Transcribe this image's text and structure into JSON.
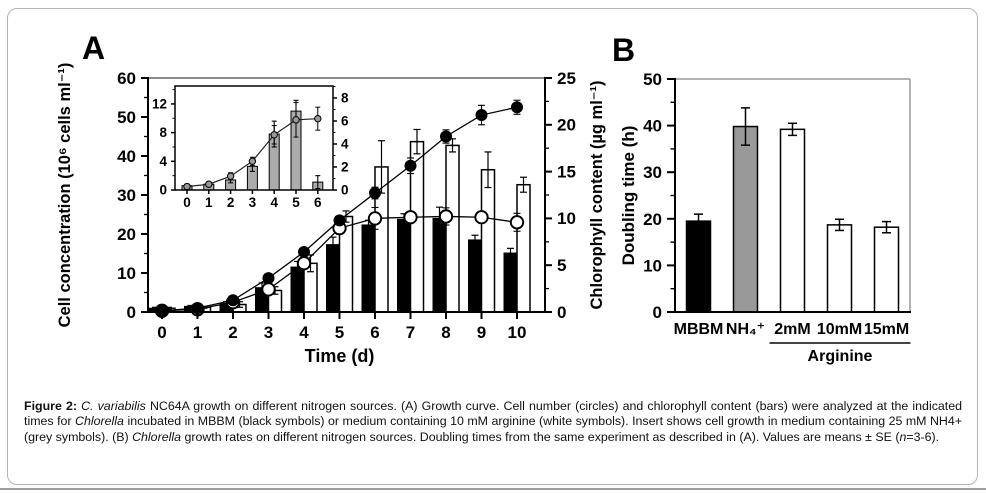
{
  "figure": {
    "panel_a_letter": "A",
    "panel_b_letter": "B"
  },
  "chart_data": [
    {
      "id": "A",
      "type": "line+bar",
      "title": "",
      "xlabel": "Time (d)",
      "x": [
        0,
        1,
        2,
        3,
        4,
        5,
        6,
        7,
        8,
        9,
        10
      ],
      "grid": false,
      "axes": {
        "left": {
          "label": "Cell concentration (10⁶ cells ml⁻¹)",
          "lim": [
            0,
            60
          ],
          "ticks": [
            0,
            10,
            20,
            30,
            40,
            50,
            60
          ],
          "minor_step": 5
        },
        "right": {
          "label": "Chlorophyll content (µg ml⁻¹)",
          "lim": [
            0,
            25
          ],
          "ticks": [
            0,
            5,
            10,
            15,
            20,
            25
          ],
          "minor_step": 2.5
        }
      },
      "series": [
        {
          "name": "Cell number MBBM",
          "kind": "line",
          "axis": "left",
          "marker": "filled-circle",
          "color": "#000000",
          "values": [
            0.3,
            1,
            3,
            8.7,
            15.4,
            23.5,
            30.5,
            37.5,
            45,
            50.5,
            52.5
          ],
          "errors": [
            0.2,
            0.2,
            0.4,
            0.6,
            0.9,
            1.1,
            1.5,
            2,
            1.7,
            2.5,
            1.8
          ]
        },
        {
          "name": "Cell number 10 mM arginine",
          "kind": "line",
          "axis": "left",
          "marker": "open-circle",
          "color": "#000000",
          "values": [
            0.3,
            0.7,
            2.5,
            5.8,
            12.5,
            21.5,
            24,
            24.3,
            24.5,
            24.3,
            23
          ],
          "errors": [
            0.2,
            0.2,
            0.4,
            0.7,
            1.3,
            1.5,
            2.8,
            1.3,
            2.2,
            1.3,
            2.3
          ]
        },
        {
          "name": "Chlorophyll MBBM",
          "kind": "bar",
          "axis": "right",
          "fill": "#000000",
          "values": [
            0.4,
            0.6,
            0.9,
            2.6,
            4.8,
            7.2,
            9.3,
            9.9,
            10,
            7.7,
            6.3
          ],
          "errors": [
            0.1,
            0.1,
            0.2,
            0.5,
            0.6,
            0.8,
            0.5,
            0.6,
            1.2,
            0.5,
            0.5
          ]
        },
        {
          "name": "Chlorophyll 10 mM arginine",
          "kind": "bar",
          "axis": "right",
          "fill": "#ffffff",
          "values": [
            0.4,
            0.5,
            0.8,
            2.3,
            5.2,
            10.2,
            15.5,
            18.2,
            17.8,
            15.2,
            13.6
          ],
          "errors": [
            0.1,
            0.1,
            0.3,
            0.4,
            0.9,
            0.6,
            2.8,
            1.3,
            0.7,
            1.9,
            0.8
          ]
        }
      ],
      "inset": {
        "name": "Cell growth 25 mM NH4+ (grey symbols)",
        "x": [
          0,
          1,
          2,
          3,
          4,
          5,
          6
        ],
        "axes": {
          "left": {
            "lim": [
              0,
              14.5
            ],
            "ticks": [
              0,
              4,
              8,
              12
            ],
            "minor_step": 2
          },
          "right": {
            "lim": [
              0,
              9.04
            ],
            "ticks": [
              0,
              2,
              4,
              6,
              8
            ],
            "minor_step": 1
          }
        },
        "bars": {
          "axis": "left",
          "fill": "#ababab",
          "values": [
            0.6,
            0.8,
            1.4,
            3.3,
            7.8,
            11,
            1.1
          ],
          "errors": [
            0.15,
            0.25,
            0.4,
            0.7,
            1.8,
            1.5,
            0.9
          ]
        },
        "line": {
          "axis": "right",
          "marker": "grey-circle",
          "fill": "#999999",
          "values": [
            0.3,
            0.5,
            1.2,
            2.5,
            4.8,
            6.1,
            6.2
          ],
          "errors": [
            0.05,
            0.1,
            0.3,
            0.35,
            0.8,
            1.5,
            1.0
          ]
        }
      }
    },
    {
      "id": "B",
      "type": "bar",
      "title": "",
      "ylabel": "Doubling time (h)",
      "ylim": [
        0,
        50
      ],
      "yticks": [
        0,
        10,
        20,
        30,
        40,
        50
      ],
      "minor_step": 5,
      "categories": [
        "MBBM",
        "NH₄⁺",
        "2mM",
        "10mM",
        "15mM"
      ],
      "values": [
        19.5,
        39.8,
        39.2,
        18.7,
        18.2
      ],
      "errors": [
        1.5,
        4.0,
        1.3,
        1.2,
        1.2
      ],
      "bar_colors": [
        "#000000",
        "#999999",
        "#ffffff",
        "#ffffff",
        "#ffffff"
      ],
      "group": {
        "label": "Arginine",
        "from": 2,
        "to": 4
      }
    }
  ],
  "caption": {
    "runs": [
      {
        "text": "Figure 2: ",
        "bold": true
      },
      {
        "text": "C. variabilis",
        "italic": true
      },
      {
        "text": " NC64A growth on different nitrogen sources. (A) Growth curve. Cell number (circles) and chlorophyll content (bars) were analyzed at the indicated times for "
      },
      {
        "text": "Chlorella",
        "italic": true
      },
      {
        "text": " incubated in MBBM (black symbols) or medium containing 10 mM arginine (white symbols). Insert shows cell growth in medium containing 25 mM NH4+ (grey symbols). (B) "
      },
      {
        "text": "Chlorella",
        "italic": true
      },
      {
        "text": " growth rates on different nitrogen sources. Doubling times from the same experiment as described in (A). Values are means ± SE ("
      },
      {
        "text": "n",
        "italic": true
      },
      {
        "text": "=3-6)."
      }
    ]
  }
}
